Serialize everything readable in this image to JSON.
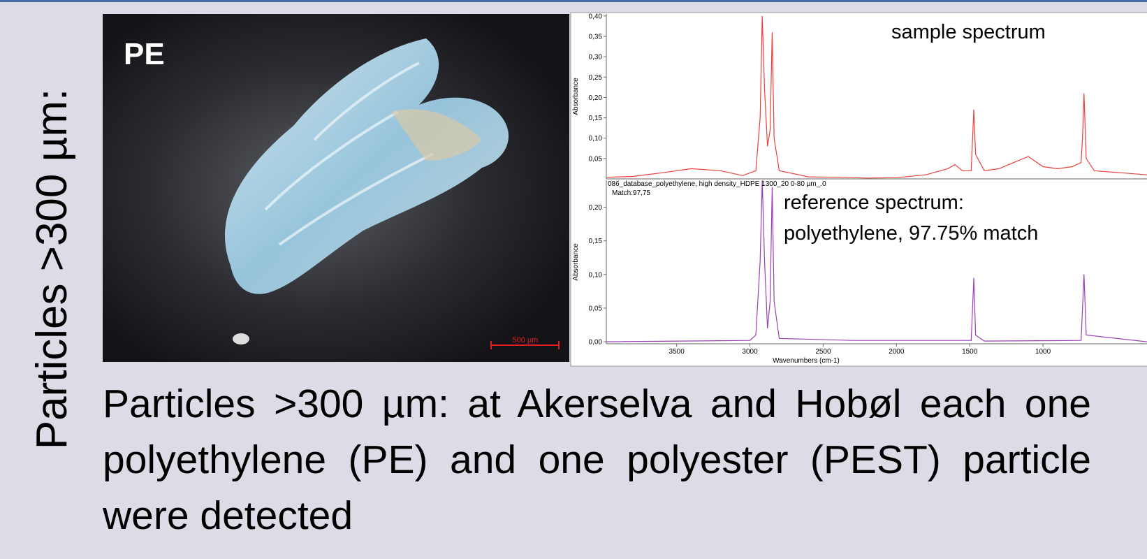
{
  "side_label": "Particles >300 µm:",
  "photo": {
    "label": "PE",
    "scale_bar": "500 µm"
  },
  "chart_data": [
    {
      "type": "line",
      "annotation": "sample spectrum",
      "ylabel": "Absorbance",
      "x": [
        3980,
        3800,
        3600,
        3400,
        3200,
        3050,
        2960,
        2930,
        2916,
        2900,
        2880,
        2862,
        2848,
        2835,
        2800,
        2600,
        2400,
        2200,
        2000,
        1800,
        1650,
        1600,
        1550,
        1490,
        1472,
        1460,
        1400,
        1300,
        1200,
        1100,
        1000,
        900,
        800,
        740,
        730,
        720,
        705,
        650,
        290
      ],
      "series": [
        {
          "color": "#e8403a",
          "values": [
            0.004,
            0.006,
            0.015,
            0.025,
            0.02,
            0.008,
            0.02,
            0.15,
            0.4,
            0.22,
            0.08,
            0.12,
            0.36,
            0.1,
            0.02,
            0.005,
            0.004,
            0.002,
            0.003,
            0.01,
            0.025,
            0.035,
            0.02,
            0.02,
            0.17,
            0.06,
            0.02,
            0.025,
            0.04,
            0.055,
            0.03,
            0.025,
            0.03,
            0.04,
            0.1,
            0.21,
            0.05,
            0.02,
            0.01
          ]
        }
      ],
      "xlim": [
        3980,
        290
      ],
      "ylim": [
        0,
        0.405
      ],
      "yticks": [
        {
          "value": 0.05,
          "label": "0,05"
        },
        {
          "value": 0.1,
          "label": "0,10"
        },
        {
          "value": 0.15,
          "label": "0,15"
        },
        {
          "value": 0.2,
          "label": "0,20"
        },
        {
          "value": 0.25,
          "label": "0,25"
        },
        {
          "value": 0.3,
          "label": "0,30"
        },
        {
          "value": 0.35,
          "label": "0,35"
        },
        {
          "value": 0.4,
          "label": "0,40"
        }
      ]
    },
    {
      "type": "line",
      "title": "086_database_polyethylene, high density_HDPE 1300_20 0-80 µm_.0",
      "subtitle": "Match:97,75",
      "annotation": [
        "reference spectrum:",
        "polyethylene, 97.75% match"
      ],
      "ylabel": "Absorbance",
      "xlabel": "Wavenumbers (cm-1)",
      "x": [
        3980,
        3000,
        2960,
        2930,
        2916,
        2900,
        2880,
        2862,
        2848,
        2835,
        2800,
        2300,
        1490,
        1472,
        1460,
        1400,
        740,
        730,
        720,
        705,
        290
      ],
      "series": [
        {
          "color": "#9b3fb5",
          "values": [
            0,
            0.002,
            0.01,
            0.12,
            0.24,
            0.12,
            0.02,
            0.06,
            0.23,
            0.06,
            0.005,
            0.002,
            0.002,
            0.095,
            0.01,
            0.001,
            0.002,
            0.05,
            0.1,
            0.01,
            0
          ]
        }
      ],
      "xlim": [
        3980,
        290
      ],
      "ylim": [
        -0.003,
        0.24
      ],
      "xticks": [
        3500,
        3000,
        2500,
        2000,
        1500,
        1000
      ],
      "yticks": [
        {
          "value": 0,
          "label": "0,00"
        },
        {
          "value": 0.05,
          "label": "0,05"
        },
        {
          "value": 0.1,
          "label": "0,10"
        },
        {
          "value": 0.15,
          "label": "0,15"
        },
        {
          "value": 0.2,
          "label": "0,20"
        }
      ]
    }
  ],
  "caption": "Particles >300 µm: at Akerselva and Hobøl each one polyethylene (PE) and one polyester (PEST) particle were detected"
}
